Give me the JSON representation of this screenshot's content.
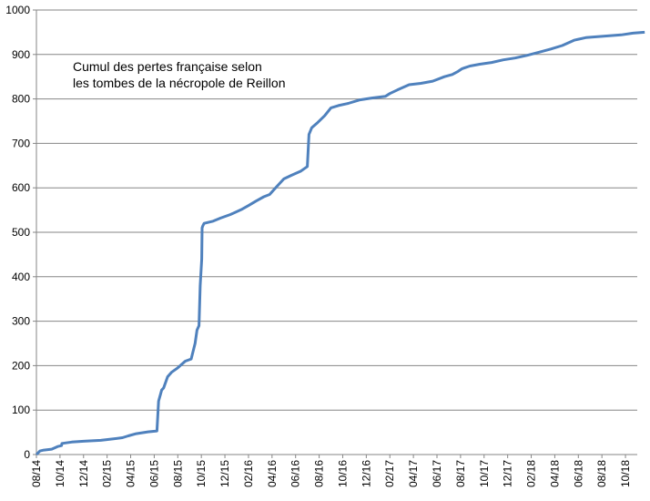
{
  "chart_data": {
    "type": "line",
    "title": "",
    "xlabel": "",
    "ylabel": "",
    "annotation": [
      "Cumul des pertes française selon",
      "les tombes de la nécropole de Reillon"
    ],
    "ylim": [
      0,
      1000
    ],
    "yticks": [
      0,
      100,
      200,
      300,
      400,
      500,
      600,
      700,
      800,
      900,
      1000
    ],
    "xlim": [
      "2014-08",
      "2018-11"
    ],
    "xticks": [
      "08/14",
      "10/14",
      "12/14",
      "02/15",
      "04/15",
      "06/15",
      "08/15",
      "10/15",
      "12/15",
      "02/16",
      "04/16",
      "06/16",
      "08/16",
      "10/16",
      "12/16",
      "02/17",
      "04/17",
      "06/17",
      "08/17",
      "10/17",
      "12/17",
      "02/18",
      "04/18",
      "06/18",
      "08/18",
      "10/18"
    ],
    "grid": true,
    "series_color": "#4f81bd",
    "series": [
      {
        "x": [
          "2014-08-01",
          "2014-08-10",
          "2014-08-20",
          "2014-09-10",
          "2014-09-25",
          "2014-10-05",
          "2014-10-06",
          "2014-11-01",
          "2014-12-01",
          "2015-01-15",
          "2015-02-15",
          "2015-03-10",
          "2015-03-25",
          "2015-04-15",
          "2015-05-15",
          "2015-06-08",
          "2015-06-12",
          "2015-06-20",
          "2015-06-25",
          "2015-07-05",
          "2015-07-15",
          "2015-08-01",
          "2015-08-20",
          "2015-09-05",
          "2015-09-15",
          "2015-09-20",
          "2015-09-25",
          "2015-09-28",
          "2015-10-02",
          "2015-10-03",
          "2015-10-05",
          "2015-10-08",
          "2015-11-01",
          "2015-11-20",
          "2015-12-15",
          "2016-01-15",
          "2016-02-01",
          "2016-02-20",
          "2016-03-10",
          "2016-03-25",
          "2016-04-10",
          "2016-05-01",
          "2016-05-20",
          "2016-06-15",
          "2016-07-01",
          "2016-07-05",
          "2016-07-12",
          "2016-07-25",
          "2016-08-15",
          "2016-09-01",
          "2016-09-20",
          "2016-10-15",
          "2016-11-15",
          "2016-12-15",
          "2017-01-20",
          "2017-02-01",
          "2017-02-20",
          "2017-03-20",
          "2017-04-20",
          "2017-05-20",
          "2017-06-20",
          "2017-07-10",
          "2017-07-25",
          "2017-08-05",
          "2017-08-25",
          "2017-09-20",
          "2017-10-20",
          "2017-11-20",
          "2017-12-20",
          "2018-01-20",
          "2018-02-20",
          "2018-03-20",
          "2018-04-20",
          "2018-05-20",
          "2018-06-20",
          "2018-07-20",
          "2018-08-20",
          "2018-09-20",
          "2018-10-20",
          "2018-11-20"
        ],
        "y": [
          0,
          8,
          10,
          12,
          18,
          20,
          25,
          28,
          30,
          32,
          35,
          38,
          42,
          47,
          51,
          53,
          120,
          145,
          150,
          175,
          185,
          195,
          210,
          215,
          250,
          280,
          290,
          380,
          440,
          510,
          515,
          520,
          525,
          532,
          540,
          552,
          560,
          570,
          580,
          585,
          600,
          620,
          628,
          638,
          648,
          720,
          735,
          745,
          762,
          780,
          785,
          790,
          798,
          802,
          806,
          812,
          820,
          832,
          835,
          840,
          850,
          855,
          862,
          868,
          874,
          878,
          882,
          888,
          892,
          898,
          905,
          912,
          920,
          932,
          938,
          940,
          942,
          944,
          948,
          950
        ]
      }
    ]
  }
}
